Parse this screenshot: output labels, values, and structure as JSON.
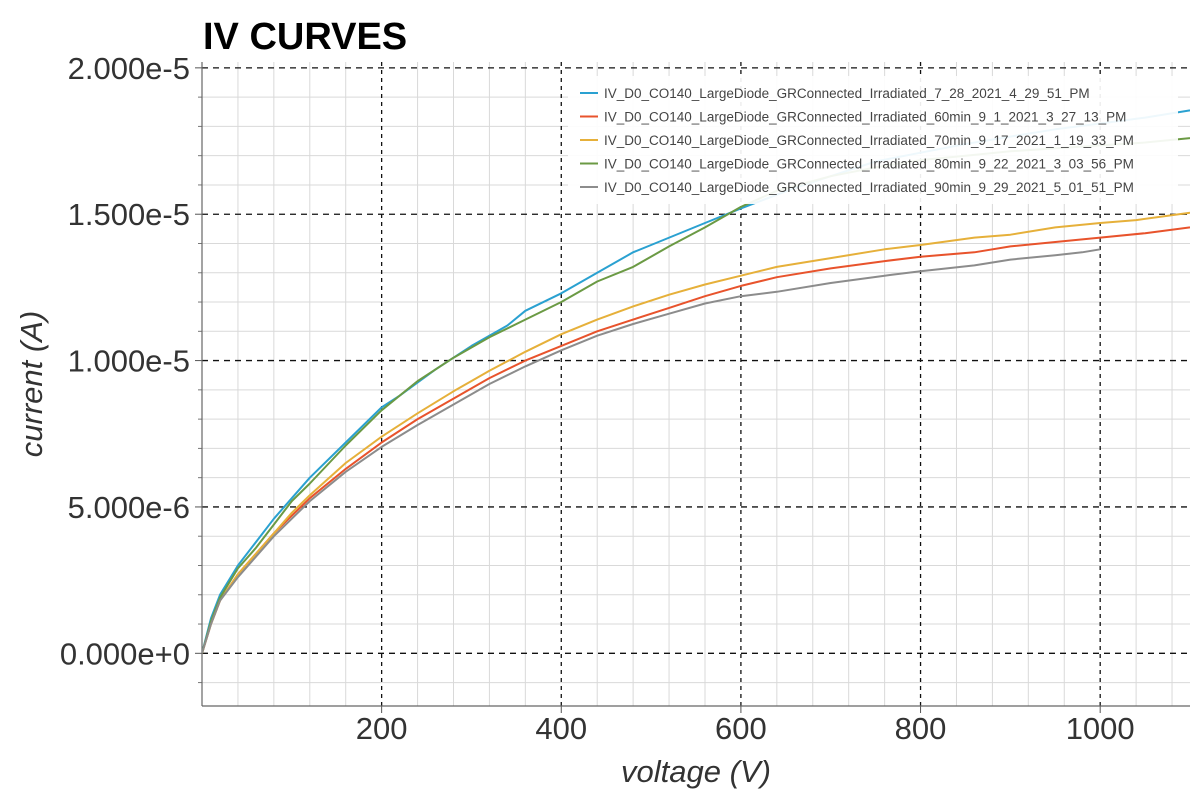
{
  "chart_data": {
    "type": "line",
    "title": "IV CURVES",
    "xlabel": "voltage (V)",
    "ylabel": "current (A)",
    "xlim": [
      0,
      1100
    ],
    "ylim": [
      -1.8e-06,
      2.02e-05
    ],
    "grid": true,
    "legend_position": "top-right",
    "x_ticks": [
      {
        "value": 200,
        "label": "200"
      },
      {
        "value": 400,
        "label": "400"
      },
      {
        "value": 600,
        "label": "600"
      },
      {
        "value": 800,
        "label": "800"
      },
      {
        "value": 1000,
        "label": "1000"
      }
    ],
    "y_ticks": [
      {
        "value": 0,
        "label": "0.000e+0"
      },
      {
        "value": 5e-06,
        "label": "5.000e-6"
      },
      {
        "value": 1e-05,
        "label": "1.000e-5"
      },
      {
        "value": 1.5e-05,
        "label": "1.500e-5"
      },
      {
        "value": 2e-05,
        "label": "2.000e-5"
      }
    ],
    "series": [
      {
        "name": "IV_D0_CO140_LargeDiode_GRConnected_Irradiated_7_28_2021_4_29_51_PM",
        "color": "#2aa1d1",
        "points": [
          [
            0,
            0
          ],
          [
            10,
            1.2e-06
          ],
          [
            20,
            2e-06
          ],
          [
            40,
            3e-06
          ],
          [
            60,
            3.8e-06
          ],
          [
            80,
            4.6e-06
          ],
          [
            100,
            5.3e-06
          ],
          [
            120,
            6e-06
          ],
          [
            160,
            7.2e-06
          ],
          [
            200,
            8.4e-06
          ],
          [
            220,
            8.8e-06
          ],
          [
            260,
            9.7e-06
          ],
          [
            300,
            1.05e-05
          ],
          [
            340,
            1.12e-05
          ],
          [
            360,
            1.17e-05
          ],
          [
            400,
            1.23e-05
          ],
          [
            440,
            1.3e-05
          ],
          [
            480,
            1.37e-05
          ],
          [
            500,
            1.395e-05
          ],
          [
            560,
            1.47e-05
          ],
          [
            600,
            1.52e-05
          ],
          [
            660,
            1.59e-05
          ],
          [
            700,
            1.63e-05
          ],
          [
            750,
            1.68e-05
          ],
          [
            800,
            1.71e-05
          ],
          [
            850,
            1.74e-05
          ],
          [
            900,
            1.765e-05
          ],
          [
            950,
            1.79e-05
          ],
          [
            1000,
            1.81e-05
          ],
          [
            1050,
            1.83e-05
          ],
          [
            1100,
            1.855e-05
          ]
        ]
      },
      {
        "name": "IV_D0_CO140_LargeDiode_GRConnected_Irradiated_60min_9_1_2021_3_27_13_PM",
        "color": "#e8532c",
        "points": [
          [
            0,
            0
          ],
          [
            10,
            1e-06
          ],
          [
            20,
            1.8e-06
          ],
          [
            40,
            2.7e-06
          ],
          [
            60,
            3.4e-06
          ],
          [
            80,
            4.1e-06
          ],
          [
            100,
            4.7e-06
          ],
          [
            120,
            5.3e-06
          ],
          [
            160,
            6.3e-06
          ],
          [
            200,
            7.2e-06
          ],
          [
            240,
            8e-06
          ],
          [
            280,
            8.7e-06
          ],
          [
            320,
            9.4e-06
          ],
          [
            360,
            1e-05
          ],
          [
            400,
            1.05e-05
          ],
          [
            440,
            1.1e-05
          ],
          [
            480,
            1.14e-05
          ],
          [
            520,
            1.18e-05
          ],
          [
            560,
            1.22e-05
          ],
          [
            600,
            1.255e-05
          ],
          [
            640,
            1.285e-05
          ],
          [
            700,
            1.315e-05
          ],
          [
            760,
            1.34e-05
          ],
          [
            800,
            1.355e-05
          ],
          [
            860,
            1.37e-05
          ],
          [
            900,
            1.39e-05
          ],
          [
            950,
            1.405e-05
          ],
          [
            1000,
            1.42e-05
          ],
          [
            1050,
            1.435e-05
          ],
          [
            1100,
            1.455e-05
          ]
        ]
      },
      {
        "name": "IV_D0_CO140_LargeDiode_GRConnected_Irradiated_70min_9_17_2021_1_19_33_PM",
        "color": "#e6b03a",
        "points": [
          [
            0,
            0
          ],
          [
            10,
            1e-06
          ],
          [
            20,
            1.8e-06
          ],
          [
            40,
            2.7e-06
          ],
          [
            60,
            3.4e-06
          ],
          [
            80,
            4.1e-06
          ],
          [
            100,
            4.8e-06
          ],
          [
            120,
            5.4e-06
          ],
          [
            160,
            6.5e-06
          ],
          [
            200,
            7.4e-06
          ],
          [
            240,
            8.2e-06
          ],
          [
            280,
            8.95e-06
          ],
          [
            320,
            9.65e-06
          ],
          [
            360,
            1.03e-05
          ],
          [
            400,
            1.09e-05
          ],
          [
            440,
            1.14e-05
          ],
          [
            480,
            1.185e-05
          ],
          [
            520,
            1.225e-05
          ],
          [
            560,
            1.26e-05
          ],
          [
            600,
            1.29e-05
          ],
          [
            640,
            1.32e-05
          ],
          [
            700,
            1.35e-05
          ],
          [
            760,
            1.38e-05
          ],
          [
            800,
            1.395e-05
          ],
          [
            860,
            1.42e-05
          ],
          [
            900,
            1.43e-05
          ],
          [
            950,
            1.455e-05
          ],
          [
            1000,
            1.47e-05
          ],
          [
            1040,
            1.48e-05
          ],
          [
            1100,
            1.505e-05
          ]
        ]
      },
      {
        "name": "IV_D0_CO140_LargeDiode_GRConnected_Irradiated_80min_9_22_2021_3_03_56_PM",
        "color": "#6b9a44",
        "points": [
          [
            0,
            0
          ],
          [
            10,
            1.1e-06
          ],
          [
            20,
            1.9e-06
          ],
          [
            40,
            2.9e-06
          ],
          [
            60,
            3.6e-06
          ],
          [
            80,
            4.4e-06
          ],
          [
            100,
            5.2e-06
          ],
          [
            120,
            5.8e-06
          ],
          [
            160,
            7.1e-06
          ],
          [
            200,
            8.3e-06
          ],
          [
            240,
            9.3e-06
          ],
          [
            280,
            1.01e-05
          ],
          [
            320,
            1.08e-05
          ],
          [
            360,
            1.14e-05
          ],
          [
            400,
            1.2e-05
          ],
          [
            440,
            1.27e-05
          ],
          [
            480,
            1.32e-05
          ],
          [
            520,
            1.39e-05
          ],
          [
            560,
            1.455e-05
          ],
          [
            600,
            1.525e-05
          ],
          [
            640,
            1.58e-05
          ],
          [
            700,
            1.63e-05
          ],
          [
            750,
            1.66e-05
          ],
          [
            800,
            1.685e-05
          ],
          [
            850,
            1.7e-05
          ],
          [
            900,
            1.715e-05
          ],
          [
            950,
            1.725e-05
          ],
          [
            1000,
            1.735e-05
          ],
          [
            1050,
            1.745e-05
          ],
          [
            1100,
            1.76e-05
          ]
        ]
      },
      {
        "name": "IV_D0_CO140_LargeDiode_GRConnected_Irradiated_90min_9_29_2021_5_01_51_PM",
        "color": "#8c8c8c",
        "points": [
          [
            0,
            0
          ],
          [
            10,
            1e-06
          ],
          [
            20,
            1.8e-06
          ],
          [
            40,
            2.6e-06
          ],
          [
            60,
            3.3e-06
          ],
          [
            80,
            4e-06
          ],
          [
            100,
            4.6e-06
          ],
          [
            120,
            5.2e-06
          ],
          [
            160,
            6.2e-06
          ],
          [
            200,
            7.05e-06
          ],
          [
            240,
            7.8e-06
          ],
          [
            280,
            8.5e-06
          ],
          [
            320,
            9.2e-06
          ],
          [
            360,
            9.8e-06
          ],
          [
            400,
            1.035e-05
          ],
          [
            440,
            1.085e-05
          ],
          [
            480,
            1.125e-05
          ],
          [
            520,
            1.16e-05
          ],
          [
            560,
            1.195e-05
          ],
          [
            600,
            1.22e-05
          ],
          [
            640,
            1.235e-05
          ],
          [
            700,
            1.265e-05
          ],
          [
            760,
            1.29e-05
          ],
          [
            800,
            1.305e-05
          ],
          [
            860,
            1.325e-05
          ],
          [
            900,
            1.345e-05
          ],
          [
            950,
            1.36e-05
          ],
          [
            980,
            1.37e-05
          ],
          [
            1000,
            1.38e-05
          ]
        ]
      }
    ]
  }
}
